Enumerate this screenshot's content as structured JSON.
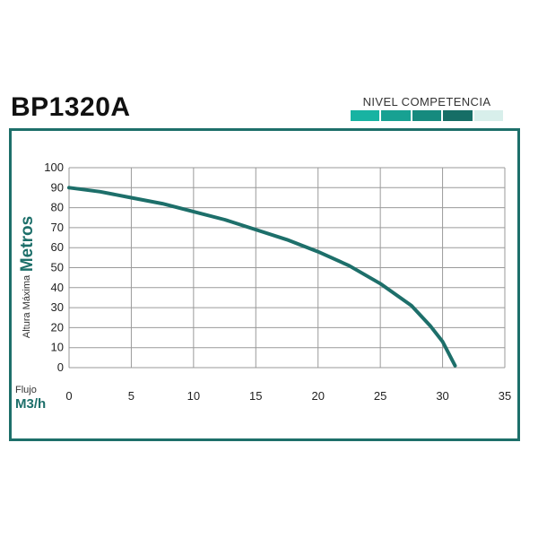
{
  "header": {
    "model": "BP1320A",
    "level_label": "NIVEL COMPETENCIA",
    "level_segments": [
      "#18b3a2",
      "#17a192",
      "#168a7e",
      "#166e66",
      "#d8efeb"
    ]
  },
  "chart_data": {
    "type": "line",
    "title": "BP1320A",
    "ylabel_small": "Altura Máxima",
    "ylabel_big": "Metros",
    "xlabel_small": "Flujo",
    "xlabel_big": "M3/h",
    "xlim": [
      0,
      35
    ],
    "ylim": [
      0,
      100
    ],
    "x_ticks": [
      0,
      5,
      10,
      15,
      20,
      25,
      30,
      35
    ],
    "y_ticks": [
      0,
      10,
      20,
      30,
      40,
      50,
      60,
      70,
      80,
      90,
      100
    ],
    "grid": true,
    "line_color": "#1d6f6a",
    "series": [
      {
        "x": [
          0,
          2.5,
          5,
          7.5,
          10,
          12.5,
          15,
          17.5,
          20,
          22.5,
          25,
          27.5,
          29,
          30,
          31
        ],
        "y": [
          90,
          88,
          85,
          82,
          78,
          74,
          69,
          64,
          58,
          51,
          42,
          31,
          21,
          13,
          1
        ]
      }
    ]
  }
}
